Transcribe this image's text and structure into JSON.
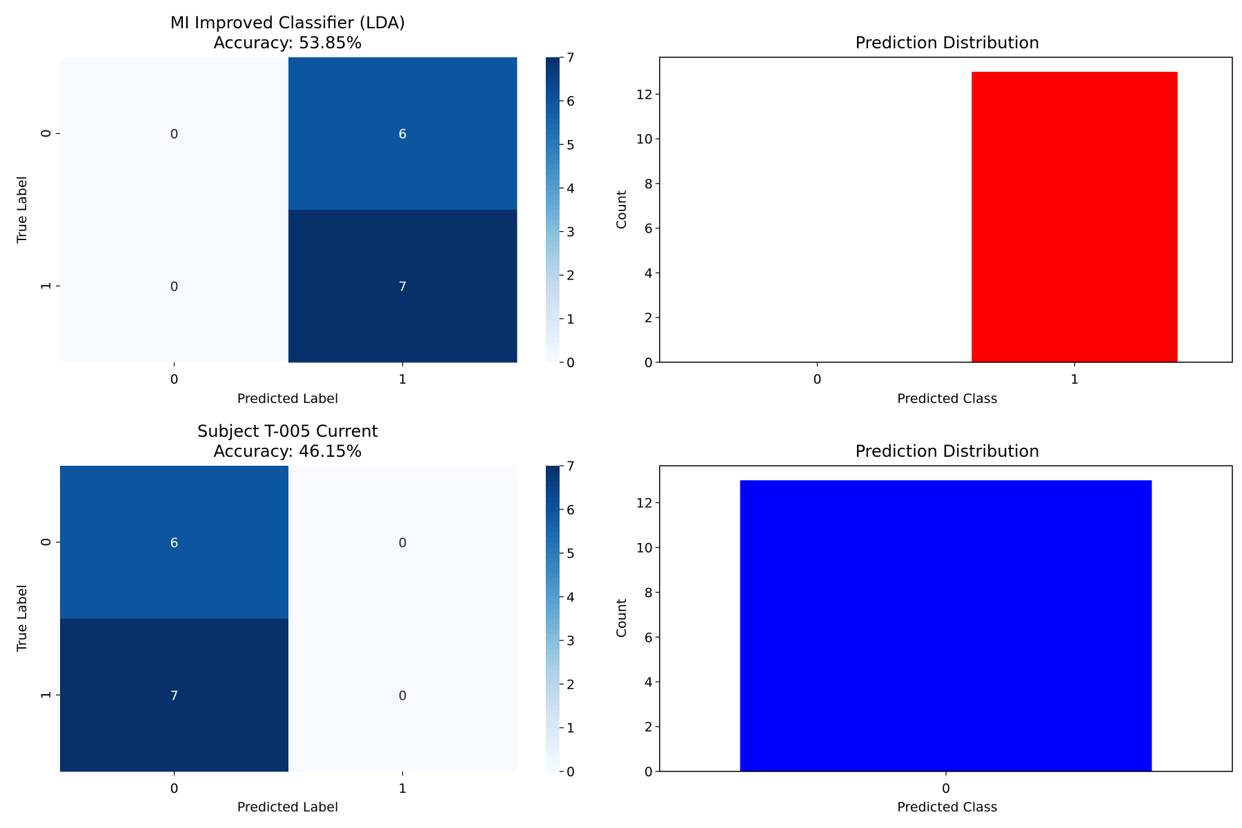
{
  "chart_data": [
    {
      "type": "heatmap",
      "title": "MI Improved Classifier (LDA)\nAccuracy: 53.85%",
      "xlabel": "Predicted Label",
      "ylabel": "True Label",
      "x_categories": [
        "0",
        "1"
      ],
      "y_categories": [
        "0",
        "1"
      ],
      "values": [
        [
          0,
          6
        ],
        [
          0,
          7
        ]
      ],
      "colormap": "Blues",
      "colorbar": {
        "range": [
          0,
          7
        ],
        "ticks": [
          "0",
          "1",
          "2",
          "3",
          "4",
          "5",
          "6",
          "7"
        ]
      }
    },
    {
      "type": "bar",
      "title": "Prediction Distribution",
      "xlabel": "Predicted Class",
      "ylabel": "Count",
      "categories": [
        "0",
        "1"
      ],
      "values": [
        0,
        13
      ],
      "colors": [
        "#ff0000",
        "#ff0000"
      ],
      "ylim": [
        0,
        13.65
      ],
      "yticks": [
        "0",
        "2",
        "4",
        "6",
        "8",
        "10",
        "12"
      ]
    },
    {
      "type": "heatmap",
      "title": "Subject T-005 Current\nAccuracy: 46.15%",
      "xlabel": "Predicted Label",
      "ylabel": "True Label",
      "x_categories": [
        "0",
        "1"
      ],
      "y_categories": [
        "0",
        "1"
      ],
      "values": [
        [
          6,
          0
        ],
        [
          7,
          0
        ]
      ],
      "colormap": "Blues",
      "colorbar": {
        "range": [
          0,
          7
        ],
        "ticks": [
          "0",
          "1",
          "2",
          "3",
          "4",
          "5",
          "6",
          "7"
        ]
      }
    },
    {
      "type": "bar",
      "title": "Prediction Distribution",
      "xlabel": "Predicted Class",
      "ylabel": "Count",
      "categories": [
        "0"
      ],
      "values": [
        13
      ],
      "colors": [
        "#0000ff"
      ],
      "ylim": [
        0,
        13.65
      ],
      "yticks": [
        "0",
        "2",
        "4",
        "6",
        "8",
        "10",
        "12"
      ]
    }
  ]
}
